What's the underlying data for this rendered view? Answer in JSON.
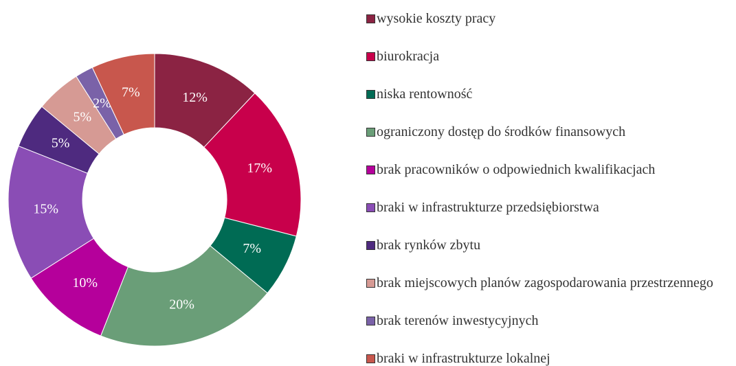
{
  "chart_data": {
    "type": "donut",
    "categories": [
      "wysokie koszty pracy",
      "biurokracja",
      "niska rentowność",
      "ograniczony dostęp do środków finansowych",
      "brak pracowników o odpowiednich kwalifikacjach",
      "braki w infrastrukturze przedsiębiorstwa",
      "brak rynków zbytu",
      "brak miejscowych planów zagospodarowania przestrzennego",
      "brak terenów inwestycyjnych",
      "braki w infrastrukturze lokalnej"
    ],
    "values": [
      12,
      17,
      7,
      20,
      10,
      15,
      5,
      5,
      2,
      7
    ],
    "value_labels": [
      "12%",
      "17%",
      "7%",
      "20%",
      "10%",
      "15%",
      "5%",
      "5%",
      "2%",
      "7%"
    ],
    "colors": [
      "#8b2343",
      "#c8004b",
      "#006b54",
      "#6a9e78",
      "#b5009b",
      "#8a4db5",
      "#4e2a7f",
      "#d69a94",
      "#7a62a8",
      "#c8574d"
    ],
    "legend": "right"
  }
}
